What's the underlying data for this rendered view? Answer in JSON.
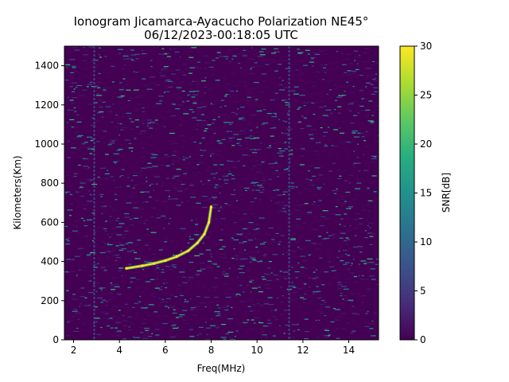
{
  "chart_data": {
    "type": "heatmap",
    "title": "Ionogram Jicamarca-Ayacucho Polarization NE45°",
    "subtitle": "06/12/2023-00:18:05 UTC",
    "xlabel": "Freq(MHz)",
    "ylabel": "Kilometers(Km)",
    "xlim": [
      1.6,
      15.3
    ],
    "ylim": [
      0,
      1500
    ],
    "x_ticks": [
      2,
      4,
      6,
      8,
      10,
      12,
      14
    ],
    "y_ticks": [
      0,
      200,
      400,
      600,
      800,
      1000,
      1200,
      1400
    ],
    "colorbar": {
      "label": "SNR[dB]",
      "range": [
        0,
        30
      ],
      "ticks": [
        0,
        5,
        10,
        15,
        20,
        25,
        30
      ],
      "colormap": "viridis"
    },
    "colors": {
      "low": "#440154",
      "mid": "#21918c",
      "high": "#fde725"
    },
    "features": {
      "trace": {
        "description_values": "F-layer echo trace",
        "points": [
          {
            "freq": 4.3,
            "range": 365
          },
          {
            "freq": 5.0,
            "range": 378
          },
          {
            "freq": 5.5,
            "range": 390
          },
          {
            "freq": 6.0,
            "range": 405
          },
          {
            "freq": 6.5,
            "range": 425
          },
          {
            "freq": 7.0,
            "range": 455
          },
          {
            "freq": 7.4,
            "range": 495
          },
          {
            "freq": 7.7,
            "range": 540
          },
          {
            "freq": 7.9,
            "range": 600
          },
          {
            "freq": 8.0,
            "range": 680
          }
        ]
      },
      "interference_lines_mhz": [
        2.9,
        11.4
      ]
    }
  }
}
